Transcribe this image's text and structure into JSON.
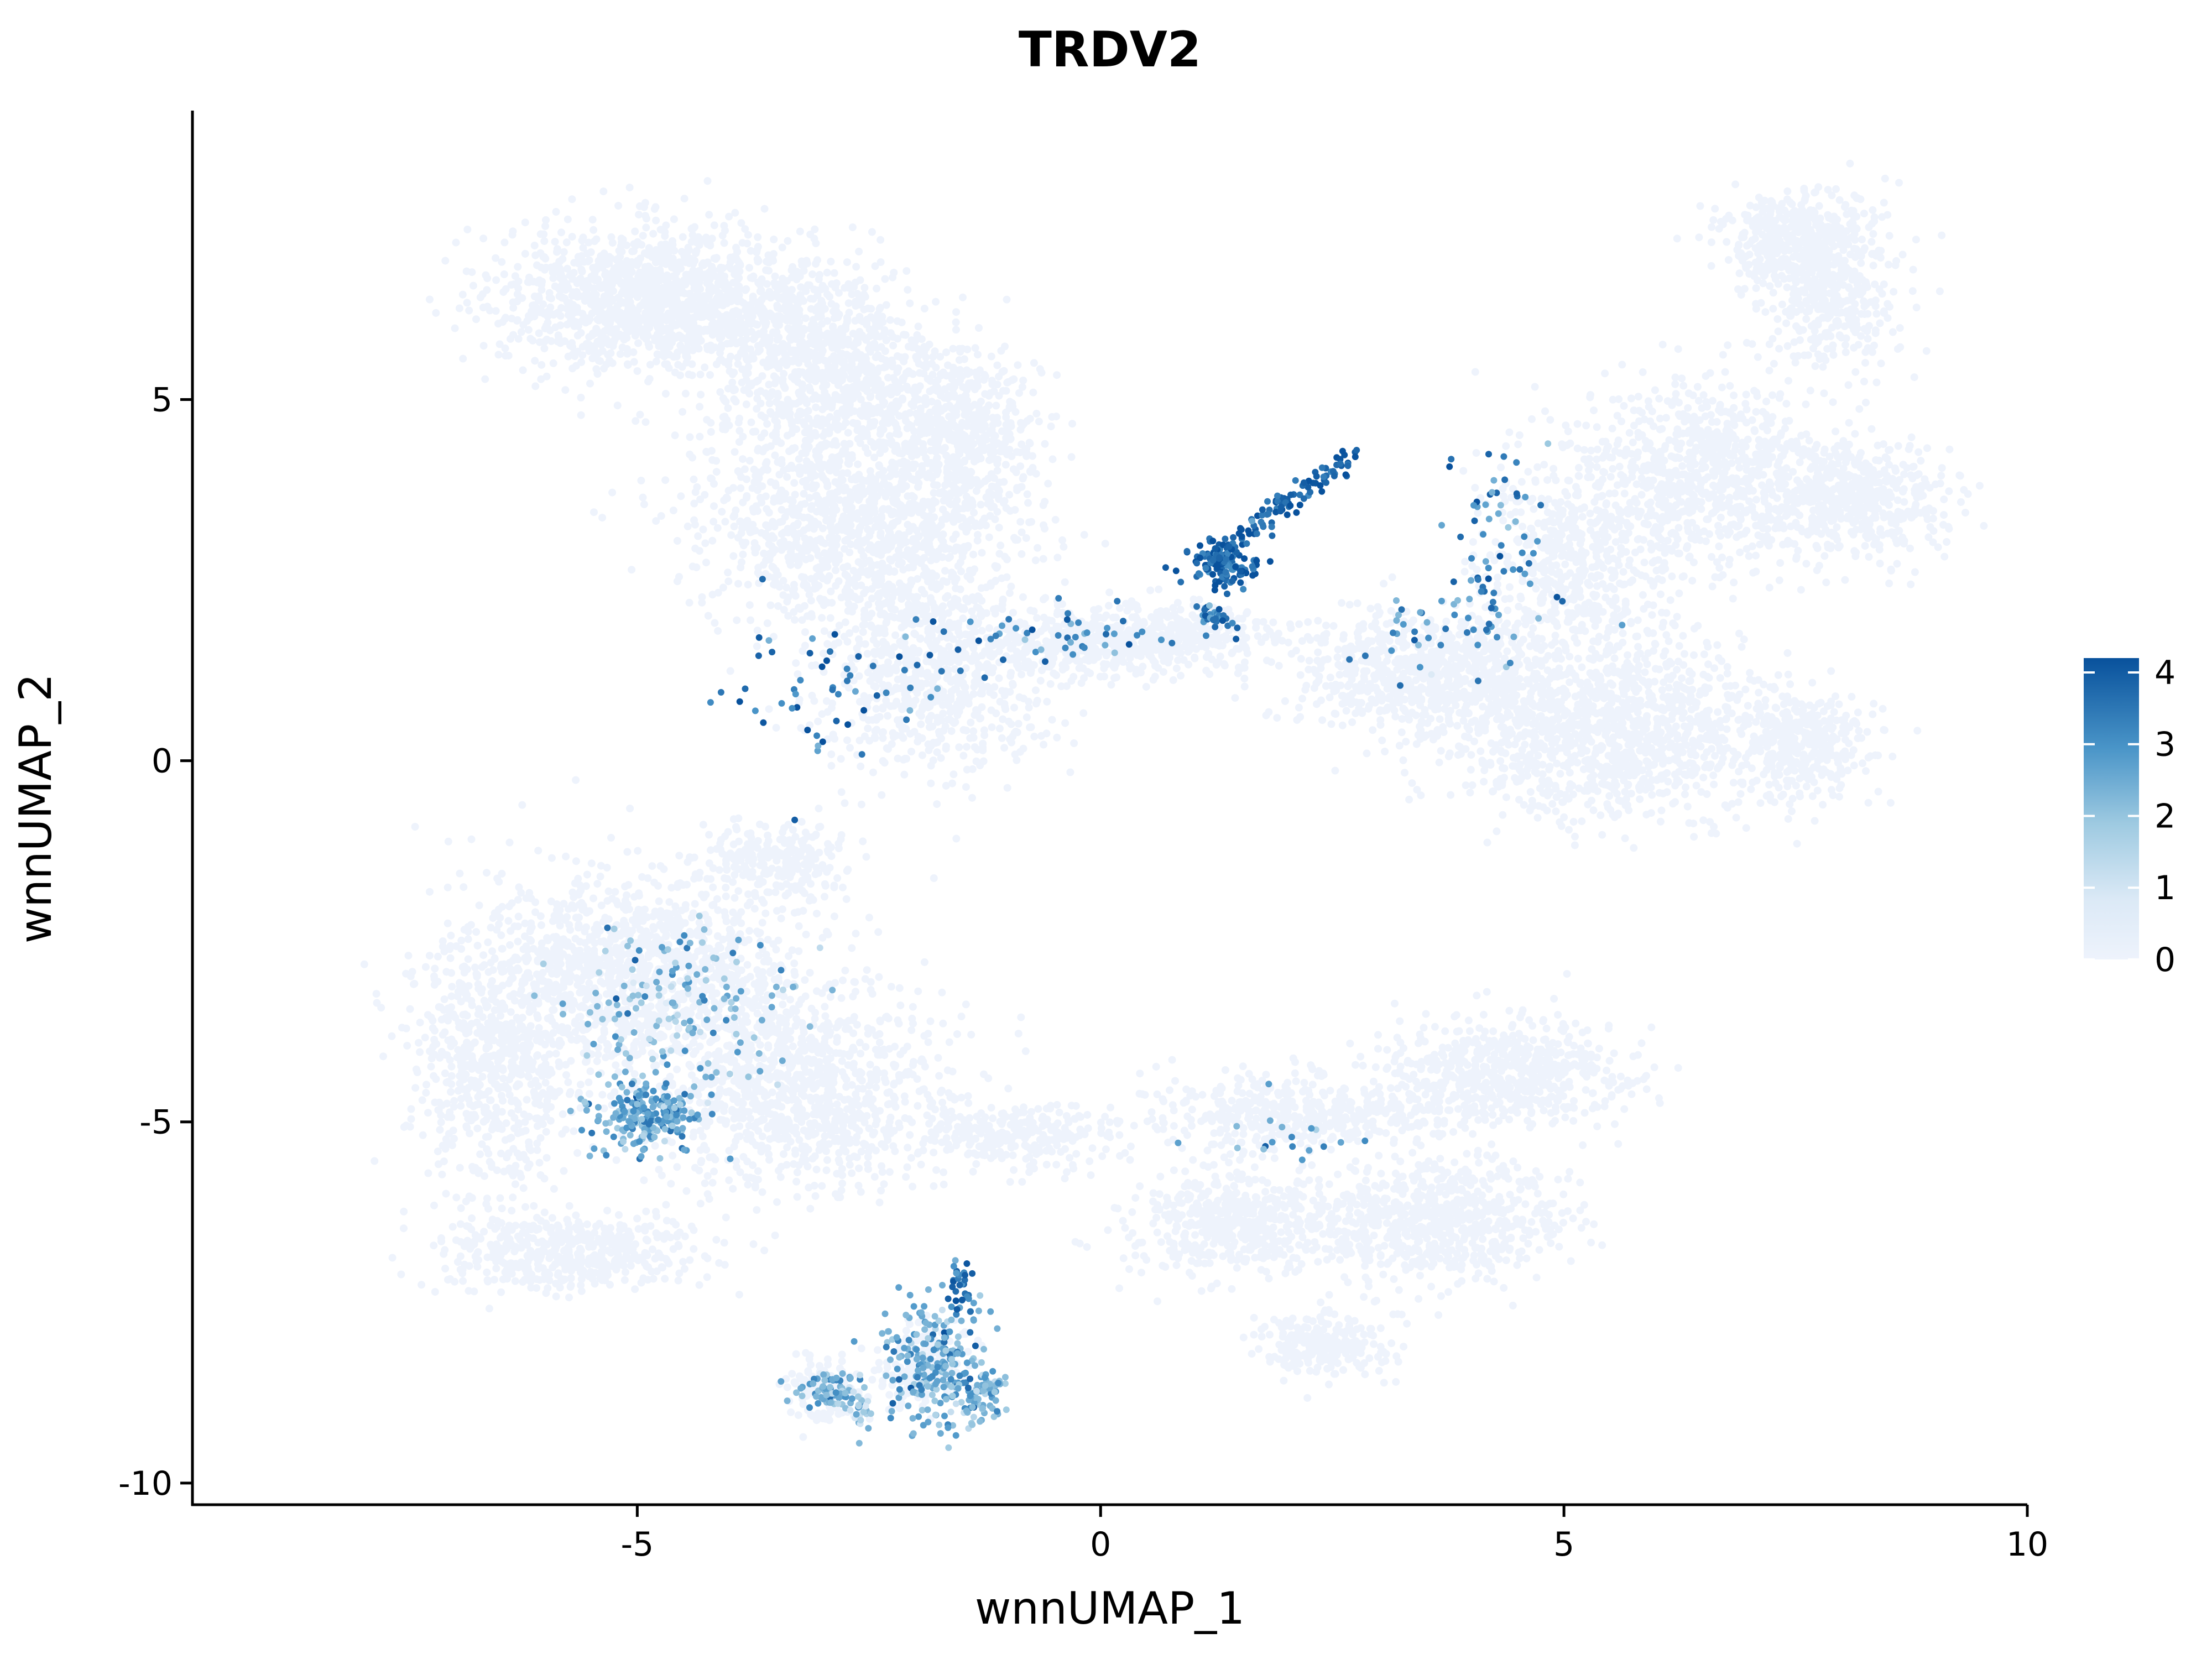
{
  "chart_data": {
    "type": "scatter",
    "title": "TRDV2",
    "xlabel": "wnnUMAP_1",
    "ylabel": "wnnUMAP_2",
    "xlim": [
      -9.8,
      10
    ],
    "ylim": [
      -10.3,
      9
    ],
    "x_ticks": [
      -5,
      0,
      5,
      10
    ],
    "x_tick_labels": [
      "-5",
      "0",
      "5",
      "10"
    ],
    "y_ticks": [
      -10,
      -5,
      0,
      5
    ],
    "y_tick_labels": [
      "-10",
      "-5",
      "0",
      "5"
    ],
    "grid": false,
    "legend": {
      "position": "right",
      "type": "colorbar",
      "range": [
        0,
        4.2
      ],
      "ticks": [
        "0",
        "1",
        "2",
        "3",
        "4"
      ],
      "colors": {
        "low": "#eef3fc",
        "mid": "#9ecae1",
        "high": "#08519c"
      }
    },
    "background_color": "#eef3fc",
    "background_clusters": [
      {
        "x": -4.8,
        "y": 6.4,
        "sx": 1.2,
        "sy": 0.7,
        "n": 1400
      },
      {
        "x": -3.0,
        "y": 5.4,
        "sx": 0.9,
        "sy": 1.0,
        "n": 900
      },
      {
        "x": -2.6,
        "y": 3.3,
        "sx": 1.2,
        "sy": 1.0,
        "n": 1200
      },
      {
        "x": -1.8,
        "y": 1.3,
        "sx": 0.9,
        "sy": 1.0,
        "n": 800
      },
      {
        "x": -1.5,
        "y": 4.6,
        "sx": 0.6,
        "sy": 0.8,
        "n": 500
      },
      {
        "x": 0.0,
        "y": 1.6,
        "sx": 0.8,
        "sy": 0.35,
        "n": 400
      },
      {
        "x": 1.0,
        "y": 1.8,
        "sx": 0.6,
        "sy": 0.3,
        "n": 200
      },
      {
        "x": 3.5,
        "y": 1.2,
        "sx": 1.1,
        "sy": 0.6,
        "n": 800
      },
      {
        "x": 5.5,
        "y": 0.4,
        "sx": 1.3,
        "sy": 0.8,
        "n": 1200
      },
      {
        "x": 7.6,
        "y": 0.2,
        "sx": 0.5,
        "sy": 0.5,
        "n": 350
      },
      {
        "x": 6.5,
        "y": 4.0,
        "sx": 1.0,
        "sy": 0.9,
        "n": 800
      },
      {
        "x": 8.1,
        "y": 3.6,
        "sx": 0.7,
        "sy": 0.6,
        "n": 500
      },
      {
        "x": 7.5,
        "y": 7.2,
        "sx": 0.6,
        "sy": 0.5,
        "n": 500
      },
      {
        "x": 7.9,
        "y": 6.3,
        "sx": 0.5,
        "sy": 0.6,
        "n": 300
      },
      {
        "x": 5.2,
        "y": 2.7,
        "sx": 0.8,
        "sy": 1.1,
        "n": 600
      },
      {
        "x": -5.0,
        "y": -3.0,
        "sx": 1.4,
        "sy": 1.0,
        "n": 1400
      },
      {
        "x": -3.3,
        "y": -4.6,
        "sx": 1.1,
        "sy": 0.9,
        "n": 1000
      },
      {
        "x": -6.6,
        "y": -4.3,
        "sx": 0.6,
        "sy": 1.2,
        "n": 600
      },
      {
        "x": -5.8,
        "y": -6.8,
        "sx": 1.0,
        "sy": 0.4,
        "n": 500
      },
      {
        "x": 1.4,
        "y": -6.4,
        "sx": 0.8,
        "sy": 0.5,
        "n": 500
      },
      {
        "x": 2.2,
        "y": -4.9,
        "sx": 1.2,
        "sy": 0.4,
        "n": 500
      },
      {
        "x": 3.6,
        "y": -6.4,
        "sx": 1.0,
        "sy": 0.6,
        "n": 700
      },
      {
        "x": 4.4,
        "y": -4.3,
        "sx": 0.9,
        "sy": 0.5,
        "n": 600
      },
      {
        "x": 2.4,
        "y": -8.1,
        "sx": 0.5,
        "sy": 0.3,
        "n": 250
      },
      {
        "x": -1.0,
        "y": -5.2,
        "sx": 0.8,
        "sy": 0.3,
        "n": 300
      },
      {
        "x": -3.5,
        "y": -1.4,
        "sx": 0.6,
        "sy": 0.4,
        "n": 250
      },
      {
        "x": -1.9,
        "y": -8.4,
        "sx": 0.4,
        "sy": 0.4,
        "n": 200
      },
      {
        "x": -3.0,
        "y": -8.7,
        "sx": 0.3,
        "sy": 0.3,
        "n": 120
      }
    ],
    "expression_clusters": [
      {
        "x": -4.9,
        "y": -4.9,
        "sx": 0.3,
        "sy": 0.25,
        "n": 220,
        "level": 2.6
      },
      {
        "x": -4.6,
        "y": -3.3,
        "sx": 0.55,
        "sy": 0.55,
        "n": 150,
        "level": 2.2
      },
      {
        "x": -1.8,
        "y": -8.3,
        "sx": 0.3,
        "sy": 0.45,
        "n": 220,
        "level": 2.6
      },
      {
        "x": -1.3,
        "y": -8.8,
        "sx": 0.15,
        "sy": 0.2,
        "n": 80,
        "level": 2.3
      },
      {
        "x": -1.5,
        "y": -7.3,
        "sx": 0.07,
        "sy": 0.25,
        "n": 30,
        "level": 3.4
      },
      {
        "x": -2.9,
        "y": -8.7,
        "sx": 0.15,
        "sy": 0.15,
        "n": 70,
        "level": 2.4
      },
      {
        "x": -2.6,
        "y": -9.0,
        "sx": 0.08,
        "sy": 0.12,
        "n": 25,
        "level": 1.8
      },
      {
        "x": 1.3,
        "y": 2.7,
        "sx": 0.2,
        "sy": 0.15,
        "n": 110,
        "level": 3.8
      },
      {
        "x": 1.2,
        "y": 2.0,
        "sx": 0.1,
        "sy": 0.08,
        "n": 30,
        "level": 3.3
      },
      {
        "x": -2.6,
        "y": 1.1,
        "sx": 0.7,
        "sy": 0.5,
        "n": 60,
        "level": 3.5
      },
      {
        "x": -0.2,
        "y": 1.7,
        "sx": 0.55,
        "sy": 0.15,
        "n": 45,
        "level": 3.2
      },
      {
        "x": 4.3,
        "y": 3.3,
        "sx": 0.3,
        "sy": 0.6,
        "n": 45,
        "level": 3.0
      },
      {
        "x": 4.3,
        "y": 2.0,
        "sx": 0.4,
        "sy": 0.4,
        "n": 30,
        "level": 3.0
      },
      {
        "x": 3.4,
        "y": 1.7,
        "sx": 0.4,
        "sy": 0.3,
        "n": 25,
        "level": 3.0
      },
      {
        "x": 2.0,
        "y": -5.2,
        "sx": 0.4,
        "sy": 0.2,
        "n": 18,
        "level": 2.6
      }
    ],
    "expression_streak": {
      "from": [
        1.2,
        2.8
      ],
      "to": [
        2.8,
        4.3
      ],
      "n": 120,
      "level": 3.9
    }
  }
}
